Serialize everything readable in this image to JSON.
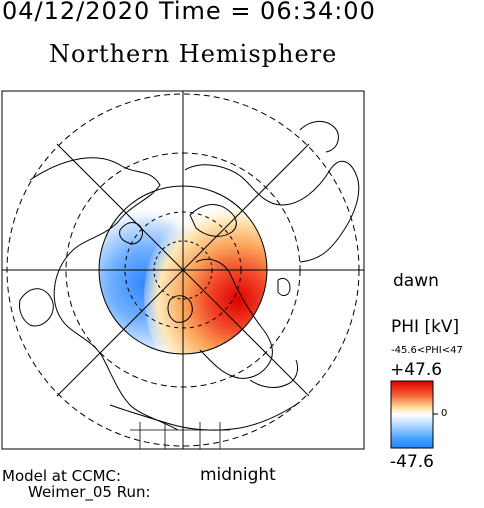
{
  "header": {
    "datetime": "04/12/2020 Time = 06:34:00",
    "hemisphere": "Northern Hemisphere"
  },
  "map": {
    "labels": {
      "dawn": "dawn",
      "midnight": "midnight"
    },
    "field": "PHI",
    "units": "[kV]"
  },
  "colorbar": {
    "title": "PHI [kV]",
    "range_text": "-45.6<PHI<47",
    "max_label": "+47.6",
    "mid_label": "0",
    "min_label": "-47.6",
    "colors": [
      "#1e90ff",
      "#ffffff",
      "#e01010"
    ]
  },
  "footer": {
    "line1": "Model at CCMC:",
    "line2": "Weimer_05 Run:"
  }
}
